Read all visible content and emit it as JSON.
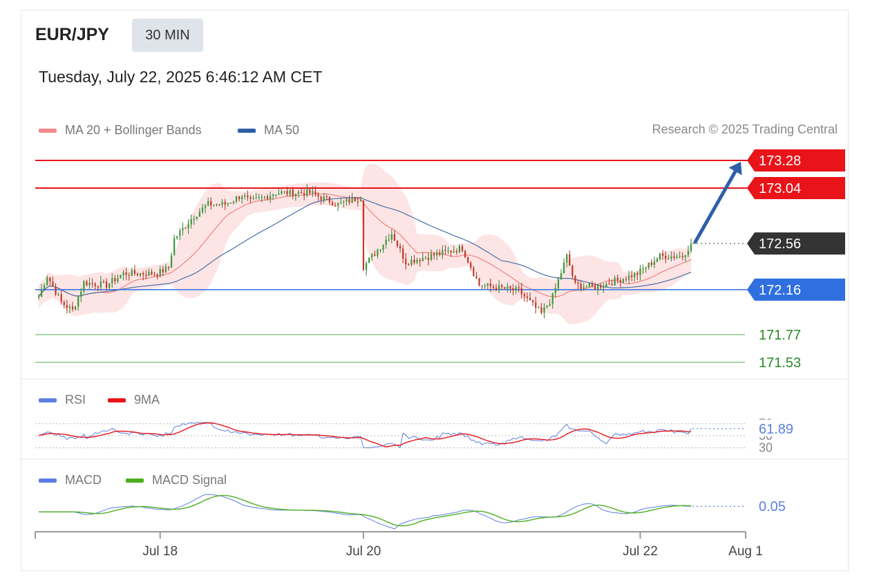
{
  "header": {
    "symbol": "EUR/JPY",
    "timeframe": "30 MIN",
    "datetime": "Tuesday, July 22, 2025 6:46:12 AM CET"
  },
  "legend": {
    "ma20_bb": "MA 20 + Bollinger Bands",
    "ma50": "MA 50",
    "credit": "Research © 2025 Trading Central"
  },
  "colors": {
    "resistance": "#e8141a",
    "support": "#2f6fe0",
    "target_line": "#8ec98e",
    "target_text": "#2a8a2a",
    "current": "#333333",
    "arrow": "#2e5fa8",
    "ma20": "#f08080",
    "ma50": "#4a6fa5",
    "bb": "#fde0e0",
    "rsi": "#5b7fe0",
    "rsi_ma": "#e8141a",
    "macd": "#5b7fe0",
    "macd_signal": "#4caf20"
  },
  "chart_data": [
    {
      "type": "candlestick",
      "title": "EUR/JPY",
      "ylim": [
        171.4,
        173.45
      ],
      "xlim_index": [
        0,
        231
      ],
      "anchors": [
        [
          0,
          172.1
        ],
        [
          3,
          172.28
        ],
        [
          8,
          172.05
        ],
        [
          12,
          171.98
        ],
        [
          16,
          172.22
        ],
        [
          24,
          172.2
        ],
        [
          30,
          172.3
        ],
        [
          42,
          172.3
        ],
        [
          46,
          172.35
        ],
        [
          48,
          172.6
        ],
        [
          55,
          172.8
        ],
        [
          60,
          172.9
        ],
        [
          66,
          172.9
        ],
        [
          72,
          172.98
        ],
        [
          75,
          172.92
        ],
        [
          84,
          173.0
        ],
        [
          96,
          173.0
        ],
        [
          106,
          172.9
        ],
        [
          114,
          172.96
        ],
        [
          115,
          172.36
        ],
        [
          125,
          172.65
        ],
        [
          130,
          172.4
        ],
        [
          150,
          172.52
        ],
        [
          156,
          172.2
        ],
        [
          170,
          172.15
        ],
        [
          178,
          171.95
        ],
        [
          182,
          172.1
        ],
        [
          187,
          172.45
        ],
        [
          190,
          172.2
        ],
        [
          197,
          172.18
        ],
        [
          206,
          172.25
        ],
        [
          212,
          172.3
        ],
        [
          220,
          172.45
        ],
        [
          228,
          172.45
        ],
        [
          231,
          172.56
        ]
      ],
      "price_levels": [
        {
          "label": "173.28",
          "value": 173.28,
          "kind": "resistance"
        },
        {
          "label": "173.04",
          "value": 173.04,
          "kind": "resistance"
        },
        {
          "label": "172.56",
          "value": 172.56,
          "kind": "current"
        },
        {
          "label": "172.16",
          "value": 172.16,
          "kind": "support"
        },
        {
          "label": "171.77",
          "value": 171.77,
          "kind": "target"
        },
        {
          "label": "171.53",
          "value": 171.53,
          "kind": "target"
        }
      ],
      "projection": {
        "from_index": 231,
        "from": 172.56,
        "to": 173.28
      }
    },
    {
      "type": "line",
      "title": "RSI",
      "series_names": [
        "RSI",
        "9MA"
      ],
      "ylim": [
        25,
        80
      ],
      "levels": [
        70,
        50,
        30
      ],
      "level_labels": [
        "70",
        "50",
        "30"
      ],
      "last_value_label": "61.89",
      "last_value": 61.89
    },
    {
      "type": "line",
      "title": "MACD",
      "series_names": [
        "MACD",
        "MACD Signal"
      ],
      "last_value_label": "0.05",
      "last_value": 0.05
    }
  ],
  "x_axis": {
    "ticks": [
      {
        "label": "Jul 18",
        "index": 43
      },
      {
        "label": "Jul 20",
        "index": 115
      },
      {
        "label": "Jul 22",
        "index": 213
      },
      {
        "label": "Aug 1",
        "index": 253
      }
    ]
  }
}
